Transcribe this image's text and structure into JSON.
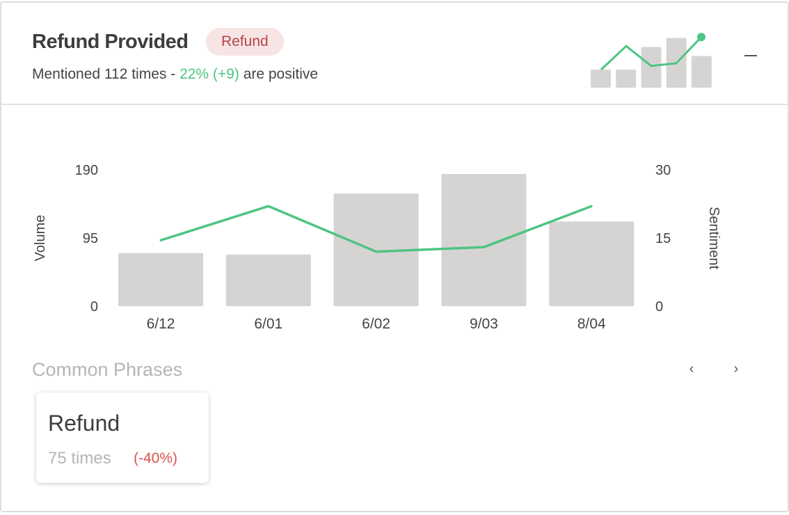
{
  "header": {
    "title": "Refund Provided",
    "tag": "Refund",
    "subtitle_prefix": "Mentioned 112 times - ",
    "subtitle_positive": "22% (+9)",
    "subtitle_suffix": " are positive"
  },
  "sparkline": {
    "bars": [
      2,
      2,
      4.5,
      5.5,
      3.5
    ],
    "line": [
      2,
      4.6,
      2.4,
      2.7,
      5.6
    ]
  },
  "colors": {
    "bar": "#d6d4d3",
    "line": "#4ec483",
    "positive": "#4ec483",
    "negative": "#d9534f",
    "tag_bg": "#f7e4e4",
    "tag_text": "#b54646"
  },
  "chart_data": {
    "type": "bar",
    "categories": [
      "6/12",
      "6/01",
      "6/02",
      "9/03",
      "8/04"
    ],
    "series": [
      {
        "type": "bar",
        "axis": "left",
        "values": [
          74,
          72,
          157,
          192,
          118
        ]
      },
      {
        "type": "line",
        "axis": "right",
        "values": [
          14.5,
          22,
          12,
          13,
          22
        ]
      }
    ],
    "ylabel": "Volume",
    "y2label": "Sentiment",
    "yticks": [
      0,
      95,
      190
    ],
    "y2ticks": [
      0,
      15,
      30
    ],
    "ylim": [
      0,
      190
    ],
    "y2lim": [
      0,
      30
    ],
    "grid": false,
    "legend": "none"
  },
  "phrases": {
    "title": "Common Phrases",
    "prev_icon": "‹",
    "next_icon": "›",
    "items": [
      {
        "name": "Refund",
        "count": "75 times",
        "change": "(-40%)"
      }
    ]
  }
}
